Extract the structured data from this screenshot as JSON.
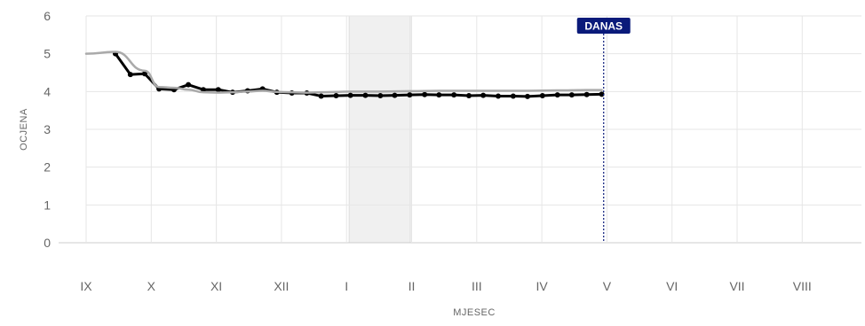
{
  "chart_data": {
    "type": "line",
    "xlabel": "MJESEC",
    "ylabel": "OCJENA",
    "ylim": [
      0,
      6
    ],
    "yticks": [
      0,
      1,
      2,
      3,
      4,
      5,
      6
    ],
    "xlim": [
      0,
      12
    ],
    "categories": [
      "IX",
      "X",
      "XI",
      "XII",
      "I",
      "II",
      "III",
      "IV",
      "V",
      "VI",
      "VII",
      "VIII"
    ],
    "grid": true,
    "today": {
      "label": "DANAS",
      "x": 7.95,
      "color": "#0a1a7a"
    },
    "shaded_band": {
      "x_start": 4.04,
      "x_end": 4.98,
      "color": "#f0f0f0"
    },
    "series": [
      {
        "style": "thick-black-markers",
        "color": "#000000",
        "x": [
          0.45,
          0.68,
          0.9,
          1.12,
          1.35,
          1.57,
          1.8,
          2.03,
          2.25,
          2.48,
          2.71,
          2.93,
          3.16,
          3.39,
          3.61,
          3.84,
          4.06,
          4.29,
          4.52,
          4.74,
          4.97,
          5.2,
          5.42,
          5.65,
          5.88,
          6.1,
          6.33,
          6.56,
          6.78,
          7.01,
          7.24,
          7.46,
          7.69,
          7.92
        ],
        "y": [
          5.0,
          4.45,
          4.47,
          4.07,
          4.05,
          4.18,
          4.05,
          4.05,
          3.98,
          4.02,
          4.07,
          3.98,
          3.96,
          3.96,
          3.88,
          3.89,
          3.9,
          3.9,
          3.89,
          3.9,
          3.91,
          3.92,
          3.91,
          3.91,
          3.89,
          3.9,
          3.88,
          3.88,
          3.87,
          3.89,
          3.91,
          3.91,
          3.92,
          3.93
        ]
      },
      {
        "style": "gray-smooth",
        "color": "#aaaaaa",
        "x": [
          0,
          0.45,
          0.9,
          1.12,
          1.35,
          1.57,
          1.8,
          2.03,
          2.25,
          2.48,
          2.71,
          2.93,
          3.16,
          3.39,
          3.61,
          3.84,
          4.06,
          4.52,
          4.97,
          5.42,
          5.88,
          6.33,
          6.78,
          7.24,
          7.69,
          7.92
        ],
        "y": [
          5.0,
          5.05,
          4.55,
          4.12,
          4.1,
          4.05,
          3.98,
          3.97,
          3.98,
          4.0,
          4.02,
          3.99,
          3.98,
          3.97,
          3.98,
          3.99,
          4.0,
          4.0,
          4.01,
          4.02,
          4.02,
          4.02,
          4.02,
          4.03,
          4.04,
          4.04
        ]
      }
    ]
  }
}
